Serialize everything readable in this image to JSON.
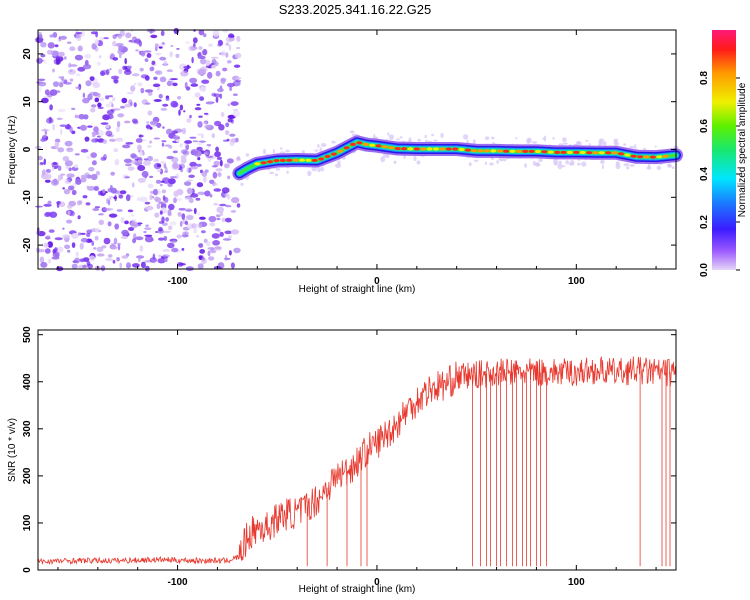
{
  "title": "S233.2025.341.16.22.G25",
  "chart_data": [
    {
      "type": "heatmap",
      "xlabel": "Height of straight line (km)",
      "ylabel": "Frequency (Hz)",
      "xlim": [
        -170,
        150
      ],
      "ylim": [
        -25,
        25
      ],
      "xticks": [
        -100,
        0,
        100
      ],
      "yticks": [
        -20,
        -10,
        0,
        10,
        20
      ],
      "colorbar": {
        "label": "Normalized spectral amplitude",
        "range": [
          0,
          1
        ],
        "ticks": [
          "0.0",
          "0.2",
          "0.4",
          "0.6",
          "0.8"
        ]
      },
      "noise_region_x": [
        -170,
        -69
      ],
      "ridge": {
        "x": [
          -69,
          -65,
          -60,
          -50,
          -40,
          -30,
          -20,
          -10,
          -5,
          0,
          10,
          20,
          30,
          40,
          50,
          60,
          70,
          80,
          90,
          100,
          110,
          120,
          130,
          140,
          150
        ],
        "y": [
          -5,
          -4,
          -3,
          -2.3,
          -2.2,
          -2.3,
          -0.7,
          1.5,
          1.0,
          0.8,
          0.2,
          0.1,
          0.1,
          0.1,
          -0.3,
          -0.3,
          -0.4,
          -0.4,
          -0.6,
          -0.6,
          -0.7,
          -0.7,
          -1.5,
          -1.6,
          -1.2
        ]
      }
    },
    {
      "type": "line",
      "xlabel": "Height of straight line (km)",
      "ylabel": "SNR (10 * v/v)",
      "xlim": [
        -170,
        150
      ],
      "ylim": [
        0,
        510
      ],
      "xticks": [
        -100,
        0,
        100
      ],
      "yticks": [
        0,
        100,
        200,
        300,
        400,
        500
      ],
      "color": "#e8382e",
      "series": [
        {
          "x": [
            -170,
            -150,
            -130,
            -110,
            -90,
            -75,
            -69,
            -65,
            -60,
            -55,
            -50,
            -45,
            -40,
            -35,
            -30,
            -25,
            -20,
            -15,
            -10,
            -5,
            0,
            5,
            10,
            15,
            20,
            25,
            30,
            35,
            40,
            50,
            60,
            70,
            80,
            90,
            100,
            110,
            120,
            130,
            140,
            150
          ],
          "y": [
            18,
            20,
            20,
            22,
            20,
            20,
            28,
            70,
            90,
            90,
            110,
            120,
            120,
            135,
            150,
            175,
            200,
            210,
            230,
            255,
            270,
            290,
            310,
            340,
            360,
            380,
            390,
            395,
            410,
            415,
            420,
            420,
            420,
            420,
            420,
            425,
            420,
            425,
            420,
            420
          ]
        }
      ],
      "dropouts_x": [
        -35,
        -25,
        -15,
        -8,
        -5,
        48,
        52,
        55,
        57,
        60,
        62,
        65,
        68,
        70,
        73,
        75,
        77,
        80,
        82,
        85,
        132,
        143,
        145,
        147
      ]
    }
  ]
}
